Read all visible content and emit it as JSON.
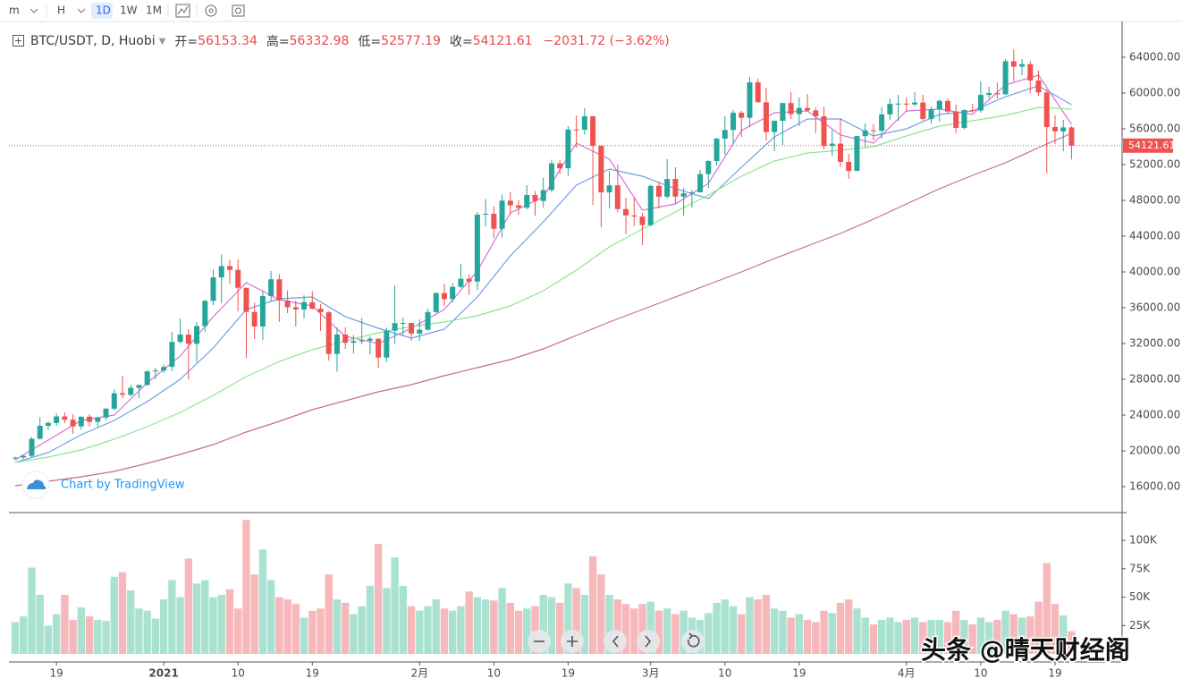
{
  "chart_data": {
    "type": "candlestick",
    "toolbar": [
      "m",
      "H",
      "1D",
      "1W",
      "1M"
    ],
    "symbol": "BTC/USDT, D, Huobi",
    "legend_labels": [
      "开=",
      "高=",
      "低=",
      "收="
    ],
    "change": "−2031.72 (−3.62%)",
    "credit": "Chart by TradingView",
    "watermark": "头条 @晴天财经阁",
    "up_color": "#26a69a",
    "down_color": "#ef5350",
    "categories": [
      "12-14",
      "12-15",
      "12-16",
      "12-17",
      "12-18",
      "12-19",
      "12-20",
      "12-21",
      "12-22",
      "12-23",
      "12-24",
      "12-25",
      "12-26",
      "12-27",
      "12-28",
      "12-29",
      "12-30",
      "12-31",
      "01-01",
      "01-02",
      "01-03",
      "01-04",
      "01-05",
      "01-06",
      "01-07",
      "01-08",
      "01-09",
      "01-10",
      "01-11",
      "01-12",
      "01-13",
      "01-14",
      "01-15",
      "01-16",
      "01-17",
      "01-18",
      "01-19",
      "01-20",
      "01-21",
      "01-22",
      "01-23",
      "01-24",
      "01-25",
      "01-26",
      "01-27",
      "01-28",
      "01-29",
      "01-30",
      "01-31",
      "02-01",
      "02-02",
      "02-03",
      "02-04",
      "02-05",
      "02-06",
      "02-07",
      "02-08",
      "02-09",
      "02-10",
      "02-11",
      "02-12",
      "02-13",
      "02-14",
      "02-15",
      "02-16",
      "02-17",
      "02-18",
      "02-19",
      "02-20",
      "02-21",
      "02-22",
      "02-23",
      "02-24",
      "02-25",
      "02-26",
      "02-27",
      "02-28",
      "03-01",
      "03-02",
      "03-03",
      "03-04",
      "03-05",
      "03-06",
      "03-07",
      "03-08",
      "03-09",
      "03-10",
      "03-11",
      "03-12",
      "03-13",
      "03-14",
      "03-15",
      "03-16",
      "03-17",
      "03-18",
      "03-19",
      "03-20",
      "03-21",
      "03-22",
      "03-23",
      "03-24",
      "03-25",
      "03-26",
      "03-27",
      "03-28",
      "03-29",
      "03-30",
      "03-31",
      "04-01",
      "04-02",
      "04-03",
      "04-04",
      "04-05",
      "04-06",
      "04-07",
      "04-08",
      "04-09",
      "04-10",
      "04-11",
      "04-12",
      "04-13",
      "04-14",
      "04-15",
      "04-16",
      "04-17",
      "04-18",
      "04-19",
      "04-20",
      "04-21"
    ],
    "open": [
      19150,
      19250,
      19440,
      21350,
      22800,
      23120,
      23850,
      23480,
      22740,
      23820,
      23240,
      23730,
      24710,
      26440,
      26270,
      27040,
      27360,
      28880,
      28980,
      29380,
      32180,
      33000,
      31970,
      33950,
      36770,
      39390,
      40660,
      40230,
      38230,
      35530,
      33900,
      37300,
      39180,
      36800,
      36050,
      35800,
      36620,
      35890,
      35490,
      30830,
      33000,
      32080,
      32270,
      32330,
      32540,
      30430,
      33430,
      34280,
      34300,
      33110,
      33540,
      35520,
      37640,
      36960,
      38330,
      39240,
      38920,
      46400,
      46500,
      44830,
      47970,
      47440,
      47180,
      48600,
      47930,
      49150,
      52140,
      51590,
      55920,
      55900,
      57400,
      54090,
      48890,
      49680,
      47030,
      46320,
      46190,
      45240,
      49620,
      48410,
      50390,
      48420,
      48790,
      48900,
      50940,
      52400,
      54900,
      55870,
      57800,
      57230,
      61190,
      58970,
      55640,
      56900,
      58880,
      57650,
      58330,
      58060,
      57400,
      54090,
      54340,
      52300,
      51290,
      55190,
      55830,
      55780,
      57610,
      58780,
      58820,
      58730,
      58940,
      57100,
      58200,
      59120,
      57930,
      56100,
      58090,
      58050,
      59790,
      59990,
      59860,
      63560,
      62950,
      63230,
      61400,
      60070,
      56200,
      55710,
      56153.34
    ],
    "high": [
      19350,
      19570,
      21550,
      23750,
      23280,
      24170,
      24300,
      24100,
      23840,
      24100,
      23800,
      24790,
      26870,
      28400,
      27400,
      27400,
      29000,
      29300,
      29650,
      33300,
      34800,
      33600,
      34400,
      36900,
      40300,
      41950,
      41350,
      41400,
      38250,
      36600,
      37850,
      40100,
      39750,
      37950,
      36800,
      37400,
      37850,
      36400,
      35600,
      33800,
      33800,
      32950,
      34850,
      32800,
      32550,
      33800,
      38500,
      34900,
      34300,
      34700,
      35900,
      37700,
      38700,
      38750,
      40900,
      39700,
      46700,
      48150,
      47350,
      48650,
      48950,
      48050,
      49700,
      49050,
      50550,
      52550,
      52500,
      56300,
      57500,
      58300,
      57450,
      54150,
      51300,
      52000,
      48300,
      48300,
      46600,
      49750,
      50100,
      52600,
      51700,
      49400,
      49200,
      51400,
      52500,
      55000,
      57400,
      58100,
      58000,
      61800,
      61600,
      60600,
      56950,
      58900,
      60100,
      59500,
      59900,
      58400,
      58450,
      55850,
      57200,
      53200,
      55200,
      56600,
      56500,
      58400,
      59400,
      59800,
      59500,
      60100,
      59800,
      58500,
      59300,
      59400,
      58700,
      58200,
      58800,
      61300,
      60700,
      61200,
      63800,
      64850,
      63800,
      63600,
      62500,
      60400,
      57500,
      57000,
      56332.98
    ],
    "low": [
      18950,
      19050,
      19300,
      21250,
      22350,
      22800,
      23070,
      21900,
      22370,
      22700,
      22700,
      23430,
      24500,
      25900,
      26100,
      25900,
      27300,
      28000,
      28700,
      28900,
      32000,
      28000,
      29900,
      33300,
      36300,
      36500,
      38700,
      35600,
      30400,
      32500,
      32400,
      36700,
      34400,
      35400,
      33900,
      34800,
      35800,
      33400,
      30100,
      28850,
      31400,
      30900,
      31900,
      30800,
      29250,
      29950,
      31950,
      32900,
      32300,
      32300,
      33450,
      35400,
      36200,
      36600,
      38200,
      37400,
      37950,
      45100,
      43800,
      43850,
      46400,
      46350,
      47000,
      46300,
      47200,
      48950,
      50950,
      50700,
      53900,
      55350,
      47500,
      45000,
      47100,
      46700,
      44200,
      45100,
      43000,
      45100,
      47100,
      48200,
      47600,
      46300,
      47200,
      48900,
      49400,
      51900,
      53100,
      54300,
      55100,
      56200,
      58950,
      54700,
      53500,
      54200,
      57100,
      56300,
      57900,
      55500,
      53700,
      53000,
      51700,
      50400,
      51300,
      53950,
      54700,
      54900,
      57000,
      56900,
      57900,
      58500,
      56900,
      56600,
      56800,
      57700,
      55500,
      55900,
      57800,
      57800,
      59400,
      59400,
      59800,
      61300,
      62000,
      60000,
      59700,
      51000,
      54300,
      53500,
      52577.19
    ],
    "close": [
      19250,
      19440,
      21350,
      22800,
      23120,
      23850,
      23480,
      22740,
      23820,
      23240,
      23730,
      24710,
      26440,
      26270,
      27040,
      27360,
      28880,
      28980,
      29380,
      32180,
      33000,
      31970,
      33950,
      36770,
      39390,
      40660,
      40230,
      38230,
      35530,
      33900,
      37300,
      39180,
      36800,
      36050,
      35800,
      36620,
      35890,
      35490,
      30830,
      33000,
      32080,
      32270,
      32330,
      32540,
      30430,
      33430,
      34280,
      34300,
      33110,
      33540,
      35520,
      37640,
      36960,
      38330,
      39240,
      38920,
      46400,
      46500,
      44830,
      47970,
      47440,
      47180,
      48600,
      47930,
      49150,
      52140,
      51590,
      55920,
      55900,
      57400,
      54090,
      48890,
      49680,
      47030,
      46320,
      46190,
      45240,
      49620,
      48410,
      50390,
      48420,
      48790,
      48900,
      50940,
      52400,
      54900,
      55870,
      57800,
      57230,
      61190,
      58970,
      55640,
      56900,
      58880,
      57650,
      58330,
      58060,
      57400,
      54090,
      54340,
      52300,
      51290,
      55190,
      55830,
      55780,
      57610,
      58780,
      58820,
      58730,
      58940,
      57100,
      58200,
      59120,
      57930,
      56100,
      58090,
      58050,
      59790,
      59990,
      59860,
      63560,
      62950,
      63230,
      61400,
      60070,
      56200,
      55710,
      56153.34,
      54121.61
    ],
    "ylim": [
      13100,
      68000
    ],
    "yticks": [
      {
        "value": 16000,
        "label": "16000.00"
      },
      {
        "value": 20000,
        "label": "20000.00"
      },
      {
        "value": 24000,
        "label": "24000.00"
      },
      {
        "value": 28000,
        "label": "28000.00"
      },
      {
        "value": 32000,
        "label": "32000.00"
      },
      {
        "value": 36000,
        "label": "36000.00"
      },
      {
        "value": 40000,
        "label": "40000.00"
      },
      {
        "value": 44000,
        "label": "44000.00"
      },
      {
        "value": 48000,
        "label": "48000.00"
      },
      {
        "value": 52000,
        "label": "52000.00"
      },
      {
        "value": 56000,
        "label": "56000.00"
      },
      {
        "value": 60000,
        "label": "60000.00"
      },
      {
        "value": 64000,
        "label": "64000.00"
      }
    ],
    "volume": {
      "up_color": "#a9e2d0",
      "down_color": "#f7b8bb",
      "values": [
        28000,
        33000,
        76000,
        52000,
        25000,
        35000,
        52000,
        30000,
        41000,
        33000,
        30000,
        29000,
        68000,
        72000,
        56000,
        40000,
        38000,
        31000,
        48000,
        65000,
        50000,
        84000,
        62000,
        65000,
        50000,
        52000,
        57000,
        40000,
        118000,
        70000,
        92000,
        65000,
        50000,
        48000,
        44000,
        32000,
        38000,
        40000,
        70000,
        48000,
        45000,
        35000,
        42000,
        60000,
        97000,
        58000,
        85000,
        60000,
        42000,
        38000,
        42000,
        48000,
        40000,
        38000,
        42000,
        55000,
        50000,
        48000,
        47000,
        58000,
        45000,
        38000,
        40000,
        42000,
        52000,
        50000,
        45000,
        62000,
        58000,
        52000,
        86000,
        70000,
        52000,
        48000,
        44000,
        40000,
        44000,
        46000,
        38000,
        40000,
        35000,
        38000,
        32000,
        30000,
        36000,
        45000,
        48000,
        42000,
        35000,
        50000,
        48000,
        52000,
        40000,
        38000,
        32000,
        35000,
        30000,
        28000,
        38000,
        36000,
        45000,
        48000,
        40000,
        32000,
        26000,
        30000,
        32000,
        28000,
        30000,
        32000,
        28000,
        30000,
        30000,
        28000,
        38000,
        30000,
        26000,
        32000,
        28000,
        30000,
        38000,
        35000,
        32000,
        33000,
        46000,
        80000,
        44000,
        34000,
        20000
      ],
      "ylim": [
        0,
        119000
      ],
      "yticks": [
        {
          "value": 25000,
          "label": "25K"
        },
        {
          "value": 50000,
          "label": "50K"
        },
        {
          "value": 75000,
          "label": "75K"
        },
        {
          "value": 100000,
          "label": "100K"
        }
      ]
    },
    "ma": {
      "x": [
        "12-14",
        "12-18",
        "12-22",
        "12-26",
        "12-30",
        "01-03",
        "01-07",
        "01-11",
        "01-15",
        "01-19",
        "01-23",
        "01-27",
        "01-31",
        "02-04",
        "02-08",
        "02-12",
        "02-16",
        "02-20",
        "02-24",
        "02-28",
        "03-04",
        "03-08",
        "03-12",
        "03-16",
        "03-20",
        "03-24",
        "03-28",
        "04-01",
        "04-05",
        "04-09",
        "04-13",
        "04-17",
        "04-21"
      ],
      "series": [
        {
          "color": "#d672d9",
          "values": [
            19000,
            21200,
            23400,
            24000,
            27600,
            30600,
            35000,
            38800,
            36900,
            36200,
            32800,
            32000,
            33700,
            35800,
            40100,
            46600,
            48400,
            54400,
            52600,
            46900,
            47600,
            49900,
            55800,
            57800,
            58000,
            55300,
            54400,
            58000,
            58200,
            57600,
            60900,
            62000,
            56500
          ]
        },
        {
          "color": "#6f9ee6",
          "values": [
            18700,
            19800,
            21800,
            23400,
            25500,
            28000,
            31500,
            35800,
            37000,
            37200,
            35000,
            33700,
            32600,
            33600,
            37200,
            41800,
            45600,
            49700,
            51500,
            50700,
            49300,
            48200,
            51700,
            55100,
            57100,
            57100,
            55200,
            56000,
            57600,
            58000,
            59600,
            60800,
            58700
          ]
        },
        {
          "color": "#8ee68e",
          "values": [
            18700,
            19300,
            20100,
            21300,
            22700,
            24300,
            26200,
            28300,
            30000,
            31300,
            32300,
            33200,
            33900,
            34400,
            35100,
            36200,
            37900,
            40200,
            42800,
            44800,
            46700,
            48600,
            50700,
            52400,
            53300,
            53600,
            54000,
            55200,
            56300,
            56900,
            57500,
            58400,
            58200
          ]
        },
        {
          "color": "#c86a93",
          "values": [
            16100,
            16600,
            17100,
            17700,
            18600,
            19600,
            20700,
            22100,
            23300,
            24600,
            25600,
            26600,
            27400,
            28400,
            29300,
            30200,
            31400,
            32900,
            34400,
            35800,
            37200,
            38600,
            40000,
            41500,
            42900,
            44300,
            45900,
            47600,
            49300,
            50800,
            52200,
            53900,
            55500
          ]
        }
      ]
    },
    "xticks": [
      {
        "value": "12-19",
        "label": "19"
      },
      {
        "value": "01-01",
        "label": "2021"
      },
      {
        "value": "01-10",
        "label": "10"
      },
      {
        "value": "01-19",
        "label": "19"
      },
      {
        "value": "02-01",
        "label": "2月"
      },
      {
        "value": "02-10",
        "label": "10"
      },
      {
        "value": "02-19",
        "label": "19"
      },
      {
        "value": "03-01",
        "label": "3月"
      },
      {
        "value": "03-10",
        "label": "10"
      },
      {
        "value": "03-19",
        "label": "19"
      },
      {
        "value": "04-01",
        "label": "4月"
      },
      {
        "value": "04-10",
        "label": "10"
      },
      {
        "value": "04-19",
        "label": "19"
      }
    ]
  }
}
